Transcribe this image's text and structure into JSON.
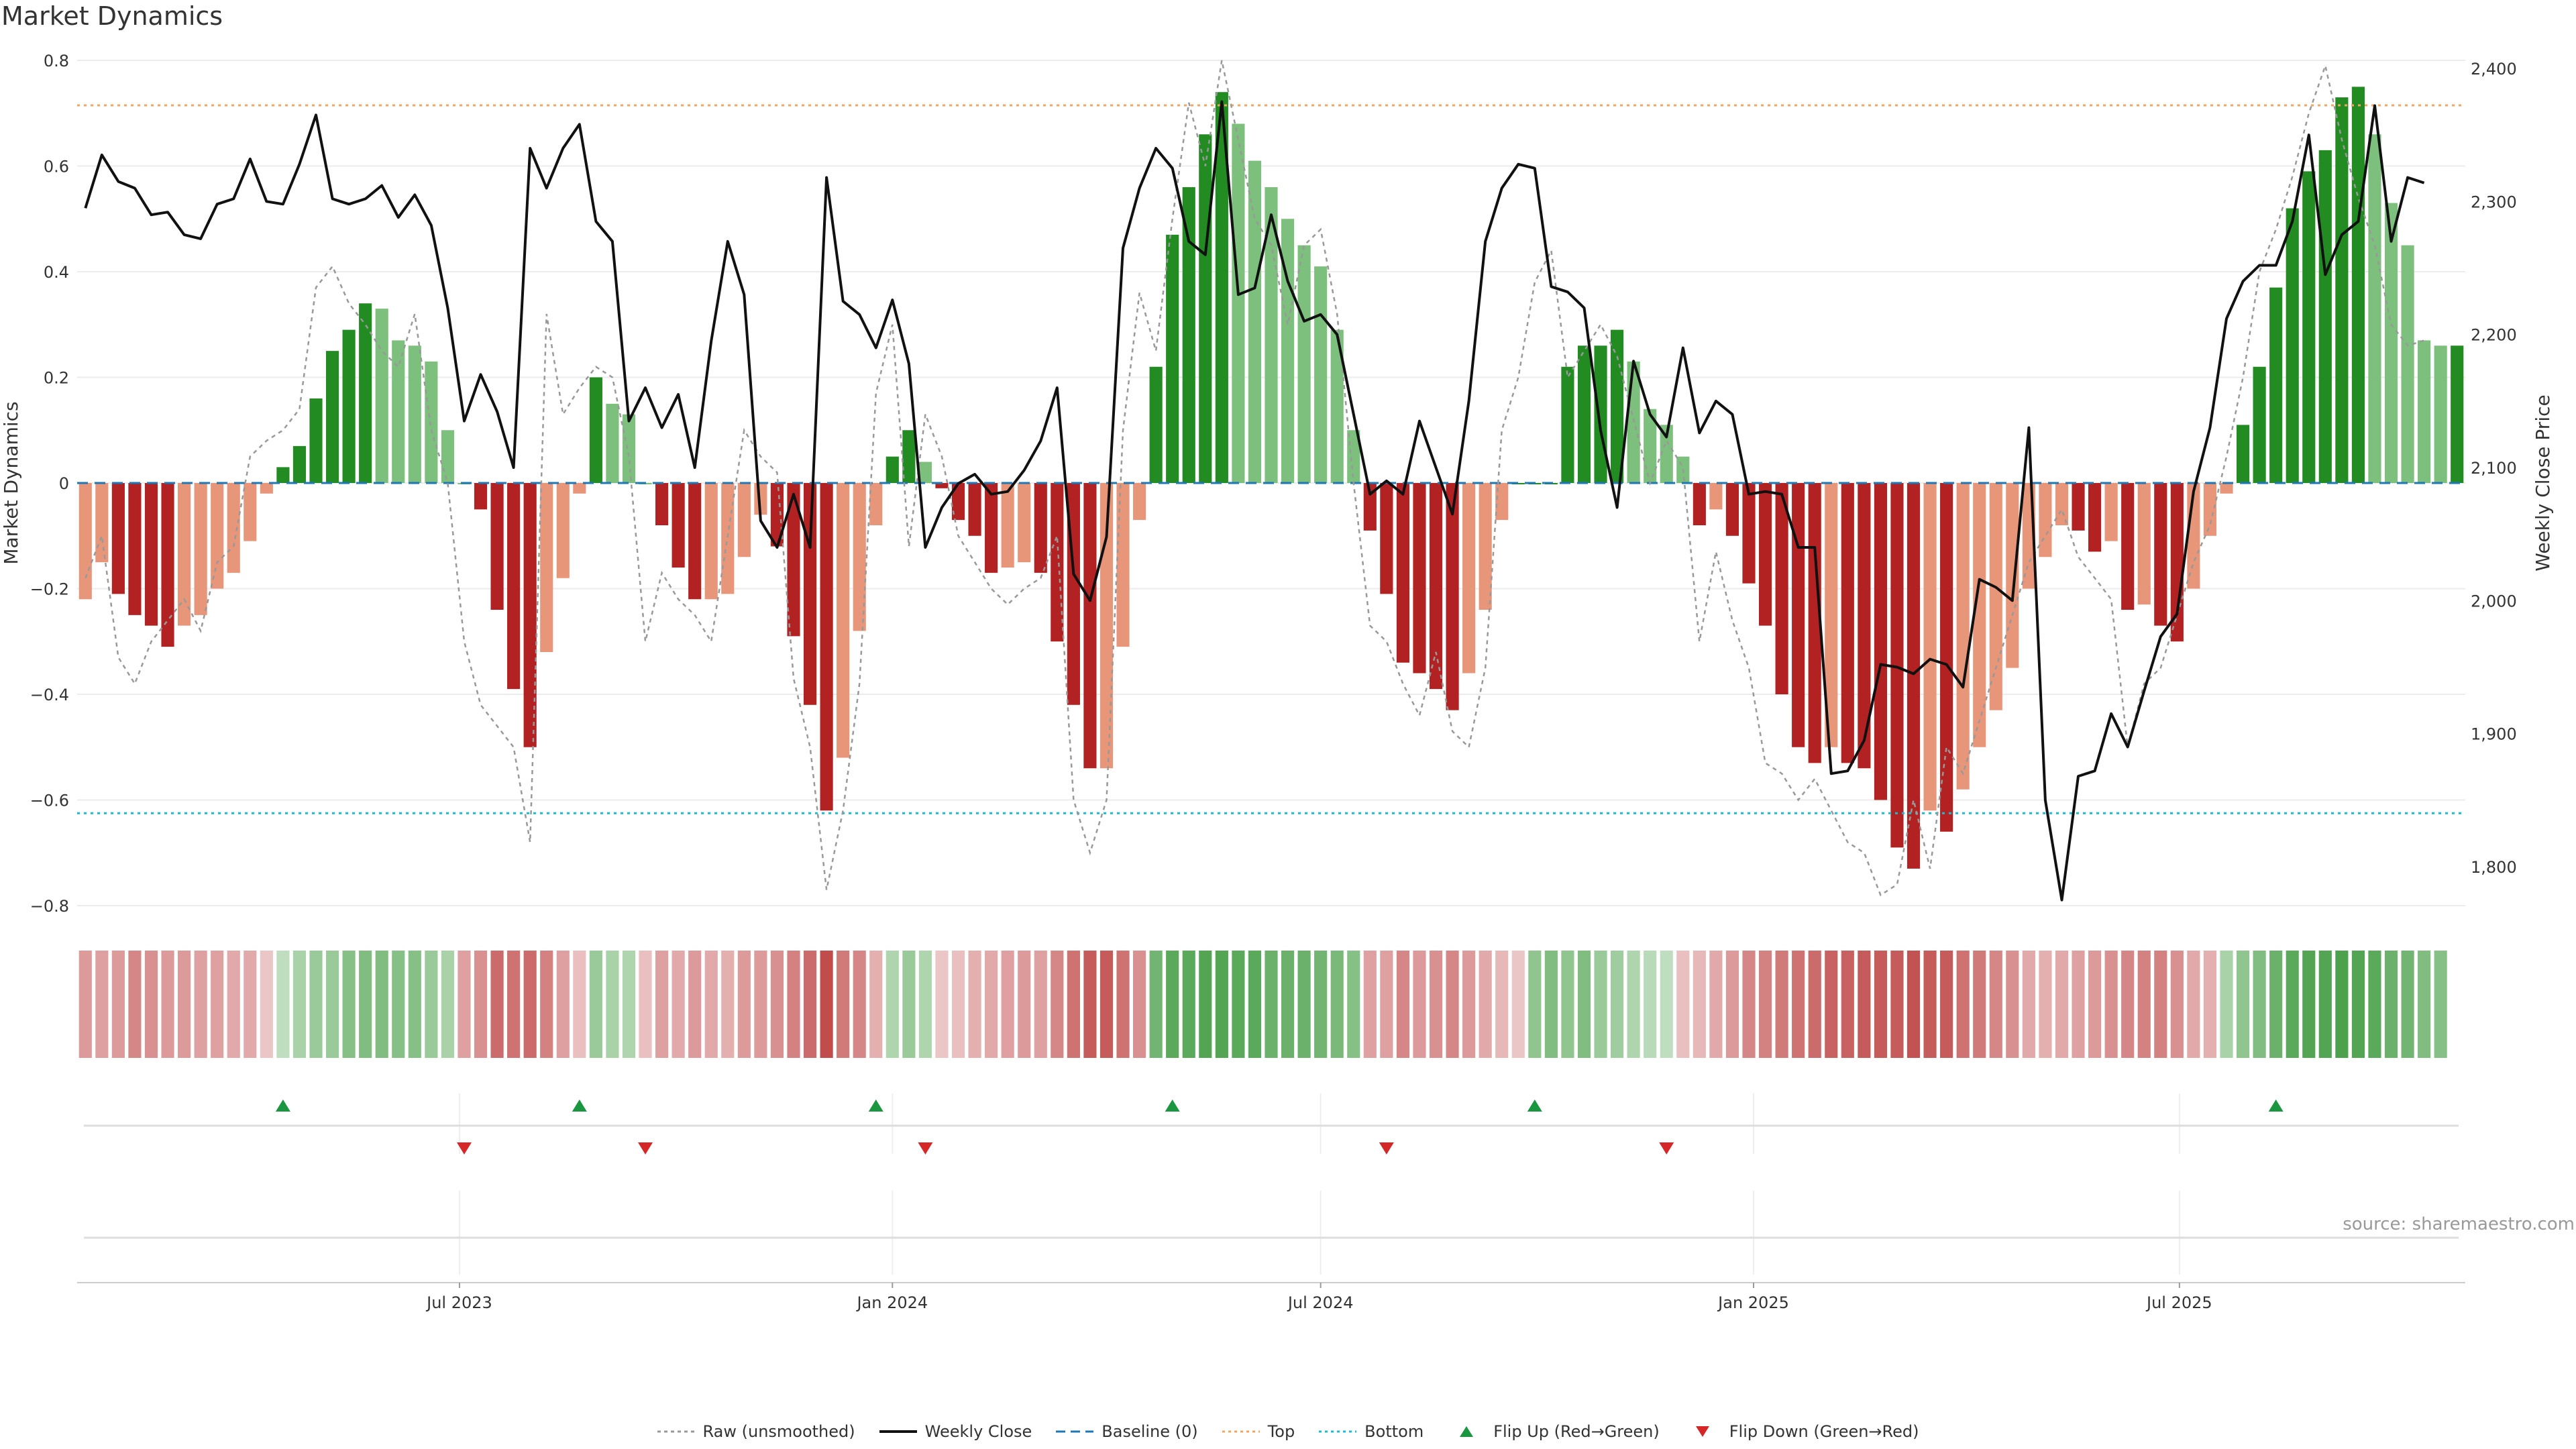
{
  "title": "Market Dynamics",
  "source": "source: sharemaestro.com",
  "legend": [
    {
      "label": "Raw (unsmoothed)",
      "icon": "dotted-line-icon"
    },
    {
      "label": "Weekly Close",
      "icon": "solid-line-icon"
    },
    {
      "label": "Baseline (0)",
      "icon": "dashed-line-icon"
    },
    {
      "label": "Top",
      "icon": "dotted-orange-line-icon"
    },
    {
      "label": "Bottom",
      "icon": "dotted-teal-line-icon"
    },
    {
      "label": "Flip Up (Red→Green)",
      "icon": "triangle-up-icon"
    },
    {
      "label": "Flip Down (Green→Red)",
      "icon": "triangle-down-icon"
    }
  ],
  "colors": {
    "green_strong": "#228b22",
    "green_light": "#7dbf7d",
    "red_strong": "#b22222",
    "red_light": "#e8967a",
    "close": "#111111",
    "raw": "#999999",
    "baseline": "#1f77b4",
    "top": "#f4a460",
    "bottom": "#17becf",
    "flip_up": "#1a9641",
    "flip_down": "#d62728"
  },
  "chart_data": {
    "type": "bar",
    "start_date": "2023-01-23",
    "interval_days": 7,
    "ylabel_left": "Market Dynamics",
    "ylabel_right": "Weekly Close Price",
    "ylim_left": [
      -0.8,
      0.8
    ],
    "ylim_right": [
      1750,
      2400
    ],
    "yticks_left": [
      0.8,
      0.6,
      0.4,
      0.2,
      0,
      -0.2,
      -0.4,
      -0.6,
      -0.8
    ],
    "yticks_left_labels": [
      "0.8",
      "0.6",
      "0.4",
      "0.2",
      "0",
      "−0.2",
      "−0.4",
      "−0.6",
      "−0.8"
    ],
    "yticks_right": [
      2400,
      2300,
      2200,
      2100,
      2000,
      1900,
      1800
    ],
    "yticks_right_labels": [
      "2,400",
      "2,300",
      "2,200",
      "2,100",
      "2,000",
      "1,900",
      "1,800"
    ],
    "xticks": [
      {
        "label": "Jul 2023",
        "date": "2023-07-01"
      },
      {
        "label": "Jan 2024",
        "date": "2024-01-01"
      },
      {
        "label": "Jul 2024",
        "date": "2024-07-01"
      },
      {
        "label": "Jan 2025",
        "date": "2025-01-01"
      },
      {
        "label": "Jul 2025",
        "date": "2025-07-01"
      }
    ],
    "top_threshold": 0.715,
    "bottom_threshold": -0.625,
    "baseline": 0,
    "grid": true,
    "legend_position": "bottom",
    "dynamics": [
      -0.22,
      -0.15,
      -0.21,
      -0.25,
      -0.27,
      -0.31,
      -0.27,
      -0.25,
      -0.2,
      -0.17,
      -0.11,
      -0.02,
      0.03,
      0.07,
      0.16,
      0.25,
      0.29,
      0.34,
      0.33,
      0.27,
      0.26,
      0.23,
      0.1,
      0.0,
      -0.05,
      -0.24,
      -0.39,
      -0.5,
      -0.32,
      -0.18,
      -0.02,
      0.2,
      0.15,
      0.13,
      0.0,
      -0.08,
      -0.16,
      -0.22,
      -0.22,
      -0.21,
      -0.14,
      -0.06,
      -0.12,
      -0.29,
      -0.42,
      -0.62,
      -0.52,
      -0.28,
      -0.08,
      0.05,
      0.1,
      0.04,
      -0.01,
      -0.07,
      -0.1,
      -0.17,
      -0.16,
      -0.15,
      -0.17,
      -0.3,
      -0.42,
      -0.54,
      -0.54,
      -0.31,
      -0.07,
      0.22,
      0.47,
      0.56,
      0.66,
      0.74,
      0.68,
      0.61,
      0.56,
      0.5,
      0.45,
      0.41,
      0.29,
      0.1,
      -0.09,
      -0.21,
      -0.34,
      -0.36,
      -0.39,
      -0.43,
      -0.36,
      -0.24,
      -0.07,
      0.0,
      0.0,
      0.0,
      0.22,
      0.26,
      0.26,
      0.29,
      0.23,
      0.14,
      0.11,
      0.05,
      -0.08,
      -0.05,
      -0.1,
      -0.19,
      -0.27,
      -0.4,
      -0.5,
      -0.53,
      -0.5,
      -0.53,
      -0.54,
      -0.6,
      -0.69,
      -0.73,
      -0.62,
      -0.66,
      -0.58,
      -0.5,
      -0.43,
      -0.35,
      -0.2,
      -0.14,
      -0.08,
      -0.09,
      -0.13,
      -0.11,
      -0.24,
      -0.23,
      -0.27,
      -0.3,
      -0.2,
      -0.1,
      -0.02,
      0.11,
      0.22,
      0.37,
      0.52,
      0.59,
      0.63,
      0.73,
      0.75,
      0.66,
      0.53,
      0.45,
      0.27,
      0.26,
      0.26
    ],
    "raw": [
      -0.18,
      -0.1,
      -0.33,
      -0.38,
      -0.3,
      -0.26,
      -0.22,
      -0.28,
      -0.15,
      -0.12,
      0.05,
      0.08,
      0.1,
      0.14,
      0.37,
      0.41,
      0.34,
      0.3,
      0.25,
      0.22,
      0.32,
      0.1,
      0.0,
      -0.3,
      -0.42,
      -0.46,
      -0.5,
      -0.68,
      0.32,
      0.13,
      0.18,
      0.22,
      0.2,
      0.05,
      -0.3,
      -0.17,
      -0.22,
      -0.25,
      -0.3,
      -0.1,
      0.1,
      0.05,
      0.02,
      -0.37,
      -0.5,
      -0.77,
      -0.62,
      -0.38,
      0.17,
      0.3,
      -0.12,
      0.13,
      0.05,
      -0.1,
      -0.15,
      -0.2,
      -0.23,
      -0.2,
      -0.18,
      -0.1,
      -0.6,
      -0.7,
      -0.6,
      0.1,
      0.36,
      0.25,
      0.5,
      0.72,
      0.6,
      0.8,
      0.65,
      0.5,
      0.45,
      0.3,
      0.45,
      0.48,
      0.32,
      0.0,
      -0.27,
      -0.3,
      -0.38,
      -0.44,
      -0.32,
      -0.47,
      -0.5,
      -0.35,
      0.1,
      0.2,
      0.38,
      0.44,
      0.2,
      0.25,
      0.3,
      0.24,
      0.12,
      0.0,
      0.08,
      0.03,
      -0.3,
      -0.13,
      -0.26,
      -0.35,
      -0.53,
      -0.55,
      -0.6,
      -0.56,
      -0.62,
      -0.68,
      -0.7,
      -0.78,
      -0.76,
      -0.6,
      -0.73,
      -0.5,
      -0.55,
      -0.45,
      -0.35,
      -0.25,
      -0.15,
      -0.1,
      -0.05,
      -0.14,
      -0.18,
      -0.22,
      -0.5,
      -0.38,
      -0.35,
      -0.25,
      -0.15,
      -0.08,
      0.05,
      0.2,
      0.4,
      0.48,
      0.58,
      0.7,
      0.79,
      0.65,
      0.54,
      0.45,
      0.3,
      0.26,
      0.27
    ],
    "close": [
      2295,
      2335,
      2315,
      2310,
      2290,
      2292,
      2275,
      2272,
      2298,
      2302,
      2332,
      2300,
      2298,
      2328,
      2365,
      2302,
      2298,
      2302,
      2312,
      2288,
      2305,
      2282,
      2220,
      2135,
      2170,
      2142,
      2100,
      2340,
      2310,
      2340,
      2358,
      2285,
      2270,
      2135,
      2160,
      2130,
      2155,
      2100,
      2195,
      2270,
      2230,
      2060,
      2040,
      2080,
      2040,
      2318,
      2225,
      2215,
      2190,
      2226,
      2178,
      2040,
      2070,
      2088,
      2095,
      2080,
      2082,
      2098,
      2120,
      2160,
      2020,
      2000,
      2048,
      2265,
      2310,
      2340,
      2325,
      2270,
      2260,
      2375,
      2230,
      2235,
      2290,
      2240,
      2210,
      2215,
      2200,
      2140,
      2080,
      2090,
      2080,
      2135,
      2100,
      2065,
      2150,
      2270,
      2310,
      2328,
      2325,
      2236,
      2232,
      2220,
      2128,
      2070,
      2180,
      2140,
      2123,
      2190,
      2126,
      2150,
      2140,
      2080,
      2082,
      2080,
      2040,
      2040,
      1870,
      1872,
      1895,
      1952,
      1950,
      1945,
      1956,
      1952,
      1935,
      2016,
      2010,
      2000,
      2130,
      1850,
      1775,
      1868,
      1872,
      1915,
      1890,
      1932,
      1973,
      1990,
      2082,
      2130,
      2212,
      2240,
      2252,
      2252,
      2285,
      2350,
      2245,
      2275,
      2285,
      2372,
      2270,
      2318,
      2314
    ],
    "heat": [
      -0.45,
      -0.4,
      -0.45,
      -0.55,
      -0.5,
      -0.45,
      -0.45,
      -0.4,
      -0.4,
      -0.35,
      -0.35,
      -0.15,
      0.2,
      0.35,
      0.45,
      0.45,
      0.55,
      0.6,
      0.6,
      0.55,
      0.55,
      0.45,
      0.35,
      -0.4,
      -0.5,
      -0.75,
      -0.7,
      -0.75,
      -0.6,
      -0.4,
      -0.2,
      0.45,
      0.35,
      0.3,
      -0.2,
      -0.4,
      -0.35,
      -0.45,
      -0.35,
      -0.3,
      -0.45,
      -0.45,
      -0.5,
      -0.6,
      -0.75,
      -0.95,
      -0.65,
      -0.55,
      -0.3,
      0.3,
      0.45,
      0.3,
      -0.15,
      -0.2,
      -0.3,
      -0.35,
      -0.4,
      -0.45,
      -0.4,
      -0.55,
      -0.7,
      -0.85,
      -0.85,
      -0.7,
      -0.5,
      0.7,
      0.85,
      0.85,
      0.9,
      0.9,
      0.85,
      0.85,
      0.75,
      0.75,
      0.75,
      0.7,
      0.65,
      0.55,
      -0.4,
      -0.4,
      -0.55,
      -0.45,
      -0.5,
      -0.55,
      -0.45,
      -0.35,
      -0.25,
      -0.15,
      0.5,
      0.6,
      0.5,
      0.6,
      0.45,
      0.4,
      0.3,
      0.25,
      0.2,
      -0.2,
      -0.25,
      -0.35,
      -0.45,
      -0.55,
      -0.6,
      -0.65,
      -0.7,
      -0.75,
      -0.8,
      -0.8,
      -0.85,
      -0.85,
      -0.85,
      -0.9,
      -0.85,
      -0.85,
      -0.7,
      -0.65,
      -0.55,
      -0.5,
      -0.35,
      -0.3,
      -0.35,
      -0.4,
      -0.45,
      -0.5,
      -0.55,
      -0.6,
      -0.6,
      -0.5,
      -0.35,
      -0.3,
      0.35,
      0.5,
      0.6,
      0.75,
      0.85,
      0.9,
      0.9,
      0.95,
      0.9,
      0.85,
      0.75,
      0.7,
      0.6,
      0.55
    ],
    "flip_up_index": [
      12,
      30,
      48,
      66,
      88,
      133
    ],
    "flip_down_index": [
      23,
      34,
      51,
      79,
      96
    ]
  }
}
